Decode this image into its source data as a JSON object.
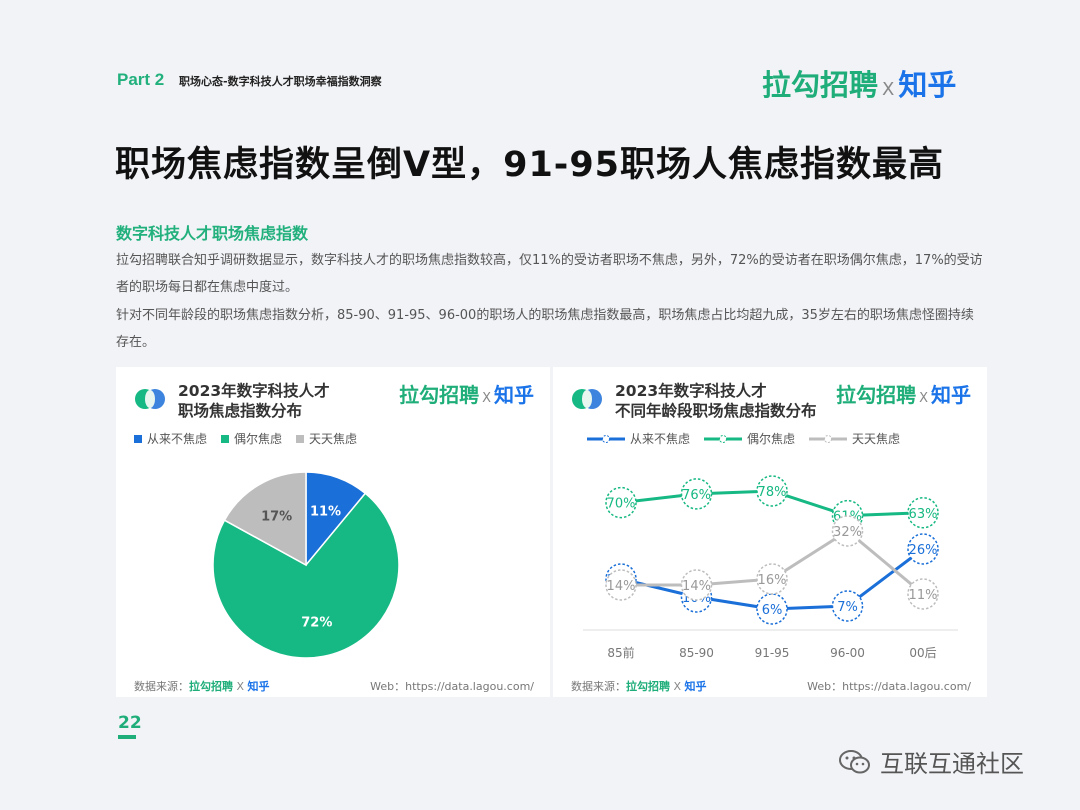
{
  "header": {
    "part": "Part 2",
    "subtitle": "职场心态-数字科技人才职场幸福指数洞察",
    "logo_lagou": "拉勾招聘",
    "logo_x": "X",
    "logo_zhihu": "知乎"
  },
  "title": "职场焦虑指数呈倒V型，91-95职场人焦虑指数最高",
  "section_title": "数字科技人才职场焦虑指数",
  "paragraph1": "拉勾招聘联合知乎调研数据显示，数字科技人才的职场焦虑指数较高，仅11%的受访者职场不焦虑，另外，72%的受访者在职场偶尔焦虑，17%的受访者的职场每日都在焦虑中度过。",
  "paragraph2": "针对不同年龄段的职场焦虑指数分析，85-90、91-95、96-00的职场人的职场焦虑指数最高，职场焦虑占比均超九成，35岁左右的职场焦虑怪圈持续存在。",
  "legend": [
    "从来不焦虑",
    "偶尔焦虑",
    "天天焦虑"
  ],
  "colors": {
    "never": "#1a6fd8",
    "sometimes": "#16b883",
    "daily": "#bdbdbd",
    "brand_green": "#1fae7a",
    "brand_blue": "#1a73e8"
  },
  "card1": {
    "title_line1": "2023年数字科技人才",
    "title_line2": "职场焦虑指数分布",
    "source_label": "数据来源：",
    "web": "Web：https://data.lagou.com/"
  },
  "card2": {
    "title_line1": "2023年数字科技人才",
    "title_line2": "不同年龄段职场焦虑指数分布",
    "source_label": "数据来源：",
    "web": "Web：https://data.lagou.com/"
  },
  "chart_data": [
    {
      "type": "pie",
      "slices": [
        {
          "name": "从来不焦虑",
          "value": 11,
          "label": "11%"
        },
        {
          "name": "偶尔焦虑",
          "value": 72,
          "label": "72%"
        },
        {
          "name": "天天焦虑",
          "value": 17,
          "label": "17%"
        }
      ]
    },
    {
      "type": "line",
      "categories": [
        "85前",
        "85-90",
        "91-95",
        "96-00",
        "00后"
      ],
      "ylim": [
        0,
        90
      ],
      "series": [
        {
          "name": "从来不焦虑",
          "values": [
            16,
            10,
            6,
            7,
            26
          ]
        },
        {
          "name": "偶尔焦虑",
          "values": [
            70,
            76,
            78,
            61,
            63
          ]
        },
        {
          "name": "天天焦虑",
          "values": [
            14,
            14,
            16,
            32,
            11
          ]
        }
      ]
    }
  ],
  "page_number": "22",
  "watermark": "互联互通社区"
}
